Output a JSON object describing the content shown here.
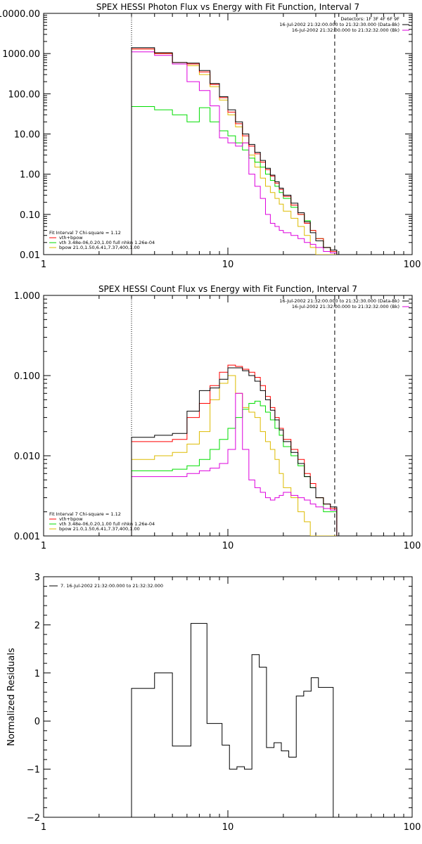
{
  "colors": {
    "total": "#000000",
    "fit": "#ff0000",
    "vth": "#00dd00",
    "bpow": "#ddbb00",
    "bk": "#dd00dd"
  },
  "chart_data": [
    {
      "type": "line",
      "title": "SPEX HESSI Photon Flux vs Energy with Fit Function, Interval 7",
      "xlabel": "",
      "ylabel": "",
      "xscale": "log",
      "yscale": "log",
      "xlim": [
        1,
        100
      ],
      "ylim": [
        0.01,
        10000
      ],
      "xticks": [
        "1",
        "10",
        "100"
      ],
      "yticks": [
        "0.01",
        "0.10",
        "1.00",
        "10.00",
        "100.00",
        "1000.00",
        "10000.00"
      ],
      "vlines": {
        "dotted": 3,
        "dashed": 38
      },
      "legend_top": [
        {
          "text": "Detectors: 1F 3F 4F 6F 9F",
          "color": ""
        },
        {
          "text": "16-Jul-2002 21:32:00.000 to 21:32:30.000 (Data-Bk)",
          "color": "total"
        },
        {
          "text": "16-Jul-2002 21:32:00.000 to 21:32:32.000 (Bk)",
          "color": "bk"
        }
      ],
      "legend_bottom": [
        {
          "text": "Fit Interval 7   Chi-square = 1.12",
          "color": ""
        },
        {
          "text": "vth+bpow",
          "color": "fit"
        },
        {
          "text": "vth 3.48e-06,0.20,1.00  full nhkn 1.26e-04",
          "color": "vth"
        },
        {
          "text": "bpow 21.0,1.50,6.41,7.37,400,1.00",
          "color": "bpow"
        }
      ],
      "edges": [
        3,
        4,
        5,
        6,
        7,
        8,
        9,
        10,
        11,
        12,
        13,
        14,
        15,
        16,
        17,
        18,
        19,
        20,
        22,
        24,
        26,
        28,
        30,
        33,
        36,
        39
      ],
      "series": [
        {
          "color": "bpow",
          "values": [
            1300,
            1000,
            550,
            500,
            300,
            150,
            70,
            30,
            15,
            6,
            3,
            1.5,
            0.8,
            0.5,
            0.35,
            0.25,
            0.18,
            0.12,
            0.08,
            0.05,
            0.03,
            0.015,
            0.01,
            0.01,
            0.01
          ]
        },
        {
          "color": "vth",
          "values": [
            48,
            40,
            30,
            20,
            45,
            20,
            12,
            9,
            6,
            4,
            2.5,
            2,
            1.5,
            1,
            0.7,
            0.5,
            0.35,
            0.25,
            0.15,
            0.1,
            0.07,
            0.04,
            0.025,
            0.015,
            0.012
          ]
        },
        {
          "color": "bk",
          "values": [
            1100,
            900,
            550,
            200,
            120,
            50,
            8,
            6,
            5,
            6,
            1,
            0.5,
            0.25,
            0.1,
            0.06,
            0.05,
            0.04,
            0.035,
            0.03,
            0.025,
            0.02,
            0.018,
            0.015,
            0.012,
            0.011
          ]
        },
        {
          "color": "fit",
          "values": [
            1300,
            1000,
            600,
            550,
            350,
            170,
            80,
            35,
            18,
            9,
            5,
            3.2,
            2,
            1.3,
            0.9,
            0.6,
            0.42,
            0.28,
            0.17,
            0.1,
            0.06,
            0.04,
            0.025,
            0.015,
            0.012
          ]
        },
        {
          "color": "total",
          "values": [
            1400,
            1050,
            600,
            580,
            380,
            180,
            85,
            40,
            20,
            10,
            5.5,
            3.5,
            2.2,
            1.4,
            0.95,
            0.65,
            0.45,
            0.3,
            0.19,
            0.11,
            0.065,
            0.035,
            0.022,
            0.015,
            0.013
          ]
        }
      ]
    },
    {
      "type": "line",
      "title": "SPEX HESSI Count Flux vs Energy with Fit Function, Interval 7",
      "xlabel": "",
      "ylabel": "",
      "xscale": "log",
      "yscale": "log",
      "xlim": [
        1,
        100
      ],
      "ylim": [
        0.001,
        1
      ],
      "xticks": [
        "1",
        "10",
        "100"
      ],
      "yticks": [
        "0.001",
        "0.010",
        "0.100",
        "1.000"
      ],
      "vlines": {
        "dotted": 3,
        "dashed": 38
      },
      "legend_top": [
        {
          "text": "16-Jul-2002 21:32:00.000 to 21:32:30.000 (Data-Bk)",
          "color": "total"
        },
        {
          "text": "16-Jul-2002 21:32:00.000 to 21:32:32.000 (Bk)",
          "color": "bk"
        }
      ],
      "legend_bottom": [
        {
          "text": "Fit Interval 7   Chi-square = 1.12",
          "color": ""
        },
        {
          "text": "vth+bpow",
          "color": "fit"
        },
        {
          "text": "vth 3.48e-06,0.20,1.00  full nhkn 1.26e-04",
          "color": "vth"
        },
        {
          "text": "bpow 21.0,1.50,6.41,7.37,400,1.00",
          "color": "bpow"
        }
      ],
      "edges": [
        3,
        4,
        5,
        6,
        7,
        8,
        9,
        10,
        11,
        12,
        13,
        14,
        15,
        16,
        17,
        18,
        19,
        20,
        22,
        24,
        26,
        28,
        30,
        33,
        36,
        39
      ],
      "series": [
        {
          "color": "vth",
          "values": [
            0.0065,
            0.0065,
            0.0068,
            0.0075,
            0.009,
            0.012,
            0.016,
            0.022,
            0.03,
            0.038,
            0.045,
            0.048,
            0.042,
            0.035,
            0.028,
            0.022,
            0.018,
            0.013,
            0.01,
            0.0075,
            0.0055,
            0.004,
            0.003,
            0.002,
            0.002
          ]
        },
        {
          "color": "bpow",
          "values": [
            0.009,
            0.01,
            0.011,
            0.014,
            0.02,
            0.05,
            0.08,
            0.1,
            0.06,
            0.04,
            0.035,
            0.03,
            0.02,
            0.015,
            0.012,
            0.009,
            0.006,
            0.004,
            0.003,
            0.002,
            0.0015,
            0.001,
            0.001,
            0.001,
            0.001
          ]
        },
        {
          "color": "bk",
          "values": [
            0.0055,
            0.0055,
            0.0055,
            0.006,
            0.0065,
            0.007,
            0.008,
            0.012,
            0.06,
            0.012,
            0.005,
            0.004,
            0.0035,
            0.003,
            0.0028,
            0.003,
            0.0032,
            0.0035,
            0.0032,
            0.003,
            0.0028,
            0.0025,
            0.0023,
            0.0022,
            0.0021
          ]
        },
        {
          "color": "fit",
          "values": [
            0.015,
            0.015,
            0.016,
            0.03,
            0.045,
            0.075,
            0.11,
            0.135,
            0.13,
            0.12,
            0.11,
            0.095,
            0.075,
            0.055,
            0.04,
            0.03,
            0.022,
            0.016,
            0.012,
            0.009,
            0.006,
            0.0045,
            0.003,
            0.0025,
            0.0022
          ]
        },
        {
          "color": "total",
          "values": [
            0.017,
            0.018,
            0.019,
            0.036,
            0.065,
            0.07,
            0.09,
            0.125,
            0.125,
            0.115,
            0.1,
            0.085,
            0.065,
            0.05,
            0.037,
            0.028,
            0.021,
            0.015,
            0.011,
            0.008,
            0.0055,
            0.004,
            0.003,
            0.0025,
            0.0023
          ]
        }
      ]
    },
    {
      "type": "line",
      "title": "",
      "xlabel": "",
      "ylabel": "Normalized Residuals",
      "xscale": "log",
      "yscale": "linear",
      "xlim": [
        1,
        100
      ],
      "ylim": [
        -2,
        3
      ],
      "xticks": [
        "1",
        "10",
        "100"
      ],
      "yticks": [
        "−2",
        "−1",
        "0",
        "1",
        "2",
        "3"
      ],
      "legend_top": [
        {
          "text": "7. 16-Jul-2002 21:32:00.000 to 21:32:32.000",
          "color": "total"
        }
      ],
      "edges": [
        3,
        3.5,
        4,
        4.5,
        5,
        5.6,
        6.3,
        7,
        7.7,
        8.5,
        9.3,
        10.2,
        11.2,
        12.3,
        13.5,
        14.8,
        16.2,
        17.8,
        19.5,
        21.4,
        23.5,
        25.8,
        28.3,
        31,
        34,
        37.3
      ],
      "series": [
        {
          "color": "total",
          "values": [
            0.68,
            0.68,
            1.0,
            1.0,
            -0.52,
            -0.52,
            2.03,
            2.03,
            -0.05,
            -0.05,
            -0.5,
            -1.0,
            -0.95,
            -1.0,
            1.38,
            1.12,
            -0.55,
            -0.45,
            -0.62,
            -0.75,
            0.52,
            0.62,
            0.9,
            0.7,
            0.7
          ]
        }
      ]
    }
  ]
}
